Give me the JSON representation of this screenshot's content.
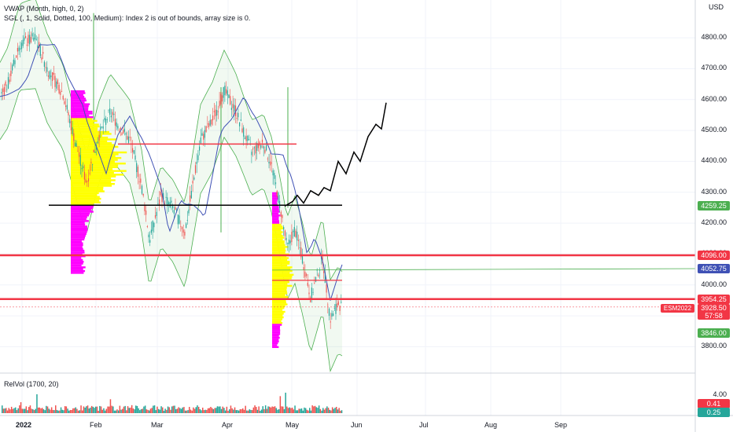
{
  "legend": {
    "vwap": "VWAP (Month, high, 0, 2)",
    "sgl": "SGL (, 1, Solid, Dotted, 100, Medium): Index 2 is out of bounds, array size is 0.",
    "relvol": "RelVol (1700, 20)"
  },
  "price_axis": {
    "currency": "USD",
    "ticks": [
      "4800.00",
      "4700.00",
      "4600.00",
      "4500.00",
      "4400.00",
      "4300.00",
      "4200.00",
      "4100.00",
      "4000.00",
      "3900.00",
      "3800.00"
    ]
  },
  "vol_axis": {
    "ticks": [
      "4.00"
    ]
  },
  "time_axis": {
    "ticks": [
      "2022",
      "Feb",
      "Mar",
      "Apr",
      "May",
      "Jun",
      "Jul",
      "Aug",
      "Sep"
    ]
  },
  "badges": {
    "vwap_upper": "4259.25",
    "resistance": "4096.00",
    "vwap": "4052.75",
    "support": "3954.25",
    "symbol": "ESM2022",
    "last": "3928.50",
    "countdown": "57:58",
    "vwap_lower": "3846.00",
    "relvol_a": "0.41",
    "relvol_b": "0.25"
  },
  "colors": {
    "up": "#26a69a",
    "down": "#ef5350",
    "vwap": "#3f51b5",
    "band": "#4caf50",
    "level_red": "#f23645",
    "projection": "#000000",
    "vp_value_area": "#ffff00",
    "vp_outside": "#ff00ff"
  },
  "chart_data": {
    "type": "candlestick",
    "symbol": "ESM2022",
    "y_range": [
      3750,
      4880
    ],
    "x_range": [
      "2022-01",
      "2022-09"
    ],
    "last_price": 3928.5,
    "horizontal_levels": [
      4096.0,
      3954.25,
      4456,
      4258,
      4015
    ],
    "projection_path": [
      [
        3928.5,
        0
      ],
      [
        4290,
        0.05
      ],
      [
        4330,
        0.22
      ],
      [
        4420,
        0.45
      ],
      [
        4590,
        1
      ]
    ]
  }
}
